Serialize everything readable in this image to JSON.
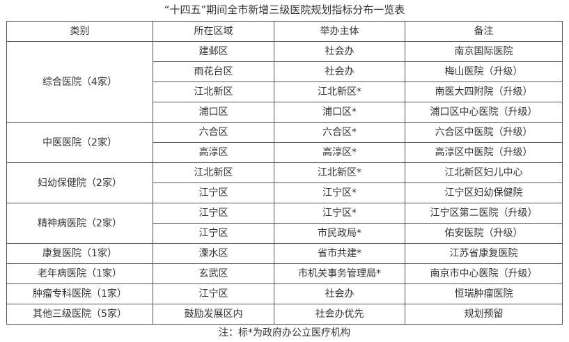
{
  "title": "“十四五”期间全市新增三级医院规划指标分布一览表",
  "headers": [
    "类别",
    "所在区域",
    "举办主体",
    "备注"
  ],
  "groups": [
    {
      "category": "综合医院（4家）",
      "rows": [
        [
          "建邺区",
          "社会办",
          "南京国际医院"
        ],
        [
          "雨花台区",
          "社会办",
          "梅山医院（升级）"
        ],
        [
          "江北新区",
          "江北新区*",
          "南医大四附院（升级）"
        ],
        [
          "浦口区",
          "浦口区*",
          "浦口区中心医院（升级）"
        ]
      ]
    },
    {
      "category": "中医医院（2家）",
      "rows": [
        [
          "六合区",
          "六合区*",
          "六合区中医院（升级）"
        ],
        [
          "高淳区",
          "高淳区*",
          "高淳区中医院（升级）"
        ]
      ]
    },
    {
      "category": "妇幼保健院（2家）",
      "rows": [
        [
          "江北新区",
          "江北新区*",
          "江北新区妇儿中心"
        ],
        [
          "江宁区",
          "江宁区*",
          "江宁区妇幼保健院"
        ]
      ]
    },
    {
      "category": "精神病医院（2家）",
      "rows": [
        [
          "江宁区",
          "江宁区*",
          "江宁区第二医院（升级）"
        ],
        [
          "江宁区",
          "市民政局*",
          "佑安医院（升级）"
        ]
      ]
    },
    {
      "category": "康复医院（1家）",
      "rows": [
        [
          "溧水区",
          "省市共建*",
          "江苏省康复医院"
        ]
      ]
    },
    {
      "category": "老年病医院（1家）",
      "rows": [
        [
          "玄武区",
          "市机关事务管理局*",
          "南京市中心医院（升级）"
        ]
      ]
    },
    {
      "category": "肿瘤专科医院（1家）",
      "rows": [
        [
          "江宁区",
          "社会办",
          "恒瑞肿瘤医院"
        ]
      ]
    },
    {
      "category": "其他三级医院（5家）",
      "rows": [
        [
          "鼓励发展区内",
          "社会办优先",
          "规划预留"
        ]
      ]
    }
  ],
  "note": "注：标*为政府办公立医疗机构"
}
